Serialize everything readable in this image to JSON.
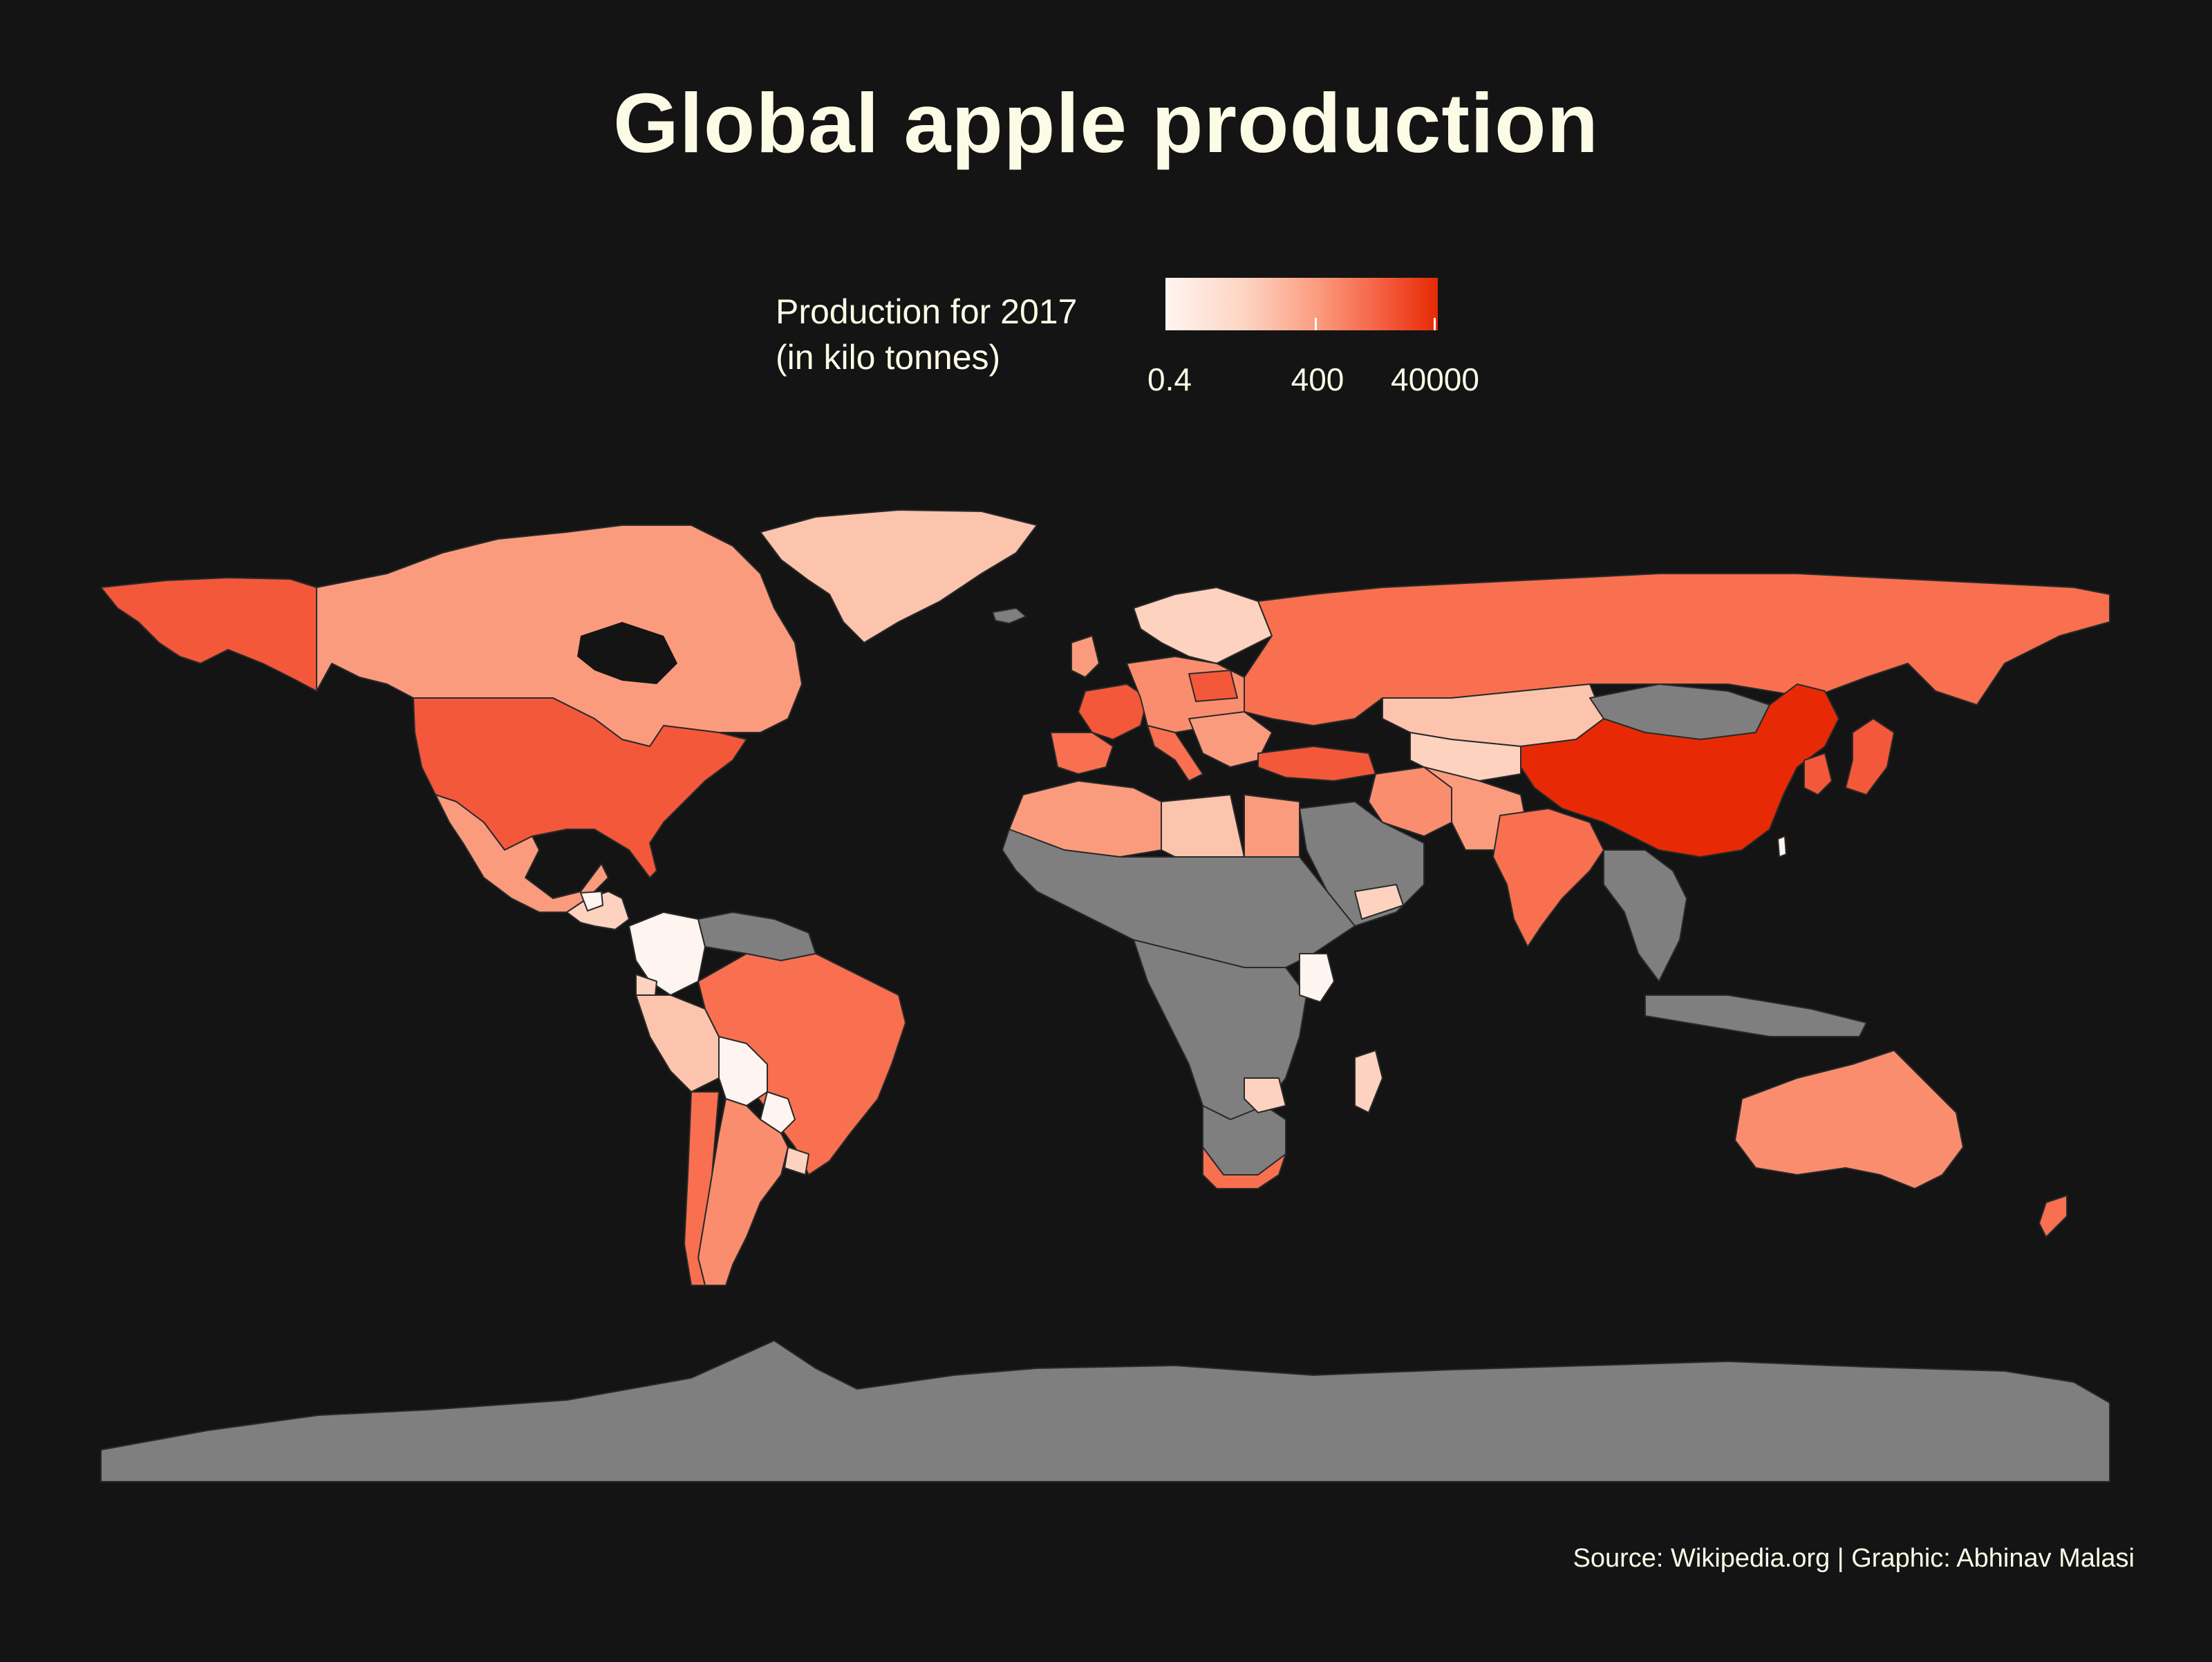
{
  "title": "Global apple production",
  "legend": {
    "title_line1": "Production for 2017",
    "title_line2": "(in kilo tonnes)",
    "ticks": [
      "0.4",
      "400",
      "40000"
    ],
    "scale": "log",
    "color_low": "#fff5f0",
    "color_high": "#e72a05",
    "no_data_color": "#7f7f7f"
  },
  "source": "Source: Wikipedia.org | Graphic: Abhinav Malasi",
  "colors": {
    "background": "#141414",
    "ocean": "#141414",
    "text": "#fbfbe6"
  }
}
